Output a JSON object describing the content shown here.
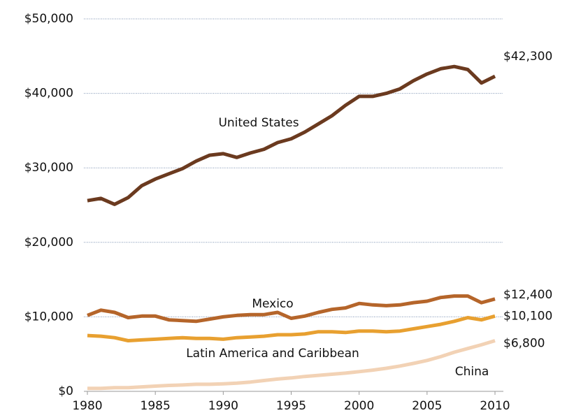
{
  "chart_data": {
    "type": "line",
    "x": [
      1980,
      1981,
      1982,
      1983,
      1984,
      1985,
      1986,
      1987,
      1988,
      1989,
      1990,
      1991,
      1992,
      1993,
      1994,
      1995,
      1996,
      1997,
      1998,
      1999,
      2000,
      2001,
      2002,
      2003,
      2004,
      2005,
      2006,
      2007,
      2008,
      2009,
      2010
    ],
    "xlim": [
      1980,
      2010
    ],
    "xticks": [
      1980,
      1985,
      1990,
      1995,
      2000,
      2005,
      2010
    ],
    "ylim": [
      0,
      50000
    ],
    "yticks": [
      {
        "value": 0,
        "label": "$0"
      },
      {
        "value": 10000,
        "label": "$10,000"
      },
      {
        "value": 20000,
        "label": "$20,000"
      },
      {
        "value": 30000,
        "label": "$30,000"
      },
      {
        "value": 40000,
        "label": "$40,000"
      },
      {
        "value": 50000,
        "label": "$50,000"
      }
    ],
    "grid": true,
    "series": [
      {
        "name": "United States",
        "color": "#6b3a1f",
        "values": [
          25600,
          25900,
          25100,
          26000,
          27600,
          28500,
          29200,
          29900,
          30900,
          31700,
          31900,
          31400,
          32000,
          32500,
          33400,
          33900,
          34800,
          35900,
          37000,
          38400,
          39600,
          39600,
          40000,
          40600,
          41700,
          42600,
          43300,
          43600,
          43200,
          41400,
          42300
        ],
        "value_labels": [
          null,
          null,
          null,
          null,
          null,
          null,
          null,
          null,
          null,
          null,
          null,
          null,
          null,
          null,
          null,
          null,
          null,
          null,
          null,
          null,
          null,
          null,
          null,
          null,
          null,
          null,
          null,
          null,
          null,
          null,
          "$42,300"
        ]
      },
      {
        "name": "Mexico",
        "color": "#b5652a",
        "values": [
          10200,
          10900,
          10600,
          9900,
          10100,
          10100,
          9600,
          9500,
          9400,
          9700,
          10000,
          10200,
          10300,
          10300,
          10600,
          9800,
          10100,
          10600,
          11000,
          11200,
          11800,
          11600,
          11500,
          11600,
          11900,
          12100,
          12600,
          12800,
          12800,
          11900,
          12400
        ],
        "value_labels": [
          null,
          null,
          null,
          null,
          null,
          null,
          null,
          null,
          null,
          null,
          null,
          null,
          null,
          null,
          null,
          null,
          null,
          null,
          null,
          null,
          null,
          null,
          null,
          null,
          null,
          null,
          null,
          null,
          null,
          null,
          "$12,400"
        ]
      },
      {
        "name": "Latin America and Caribbean",
        "color": "#e8a030",
        "values": [
          7500,
          7400,
          7200,
          6800,
          6900,
          7000,
          7100,
          7200,
          7100,
          7100,
          7000,
          7200,
          7300,
          7400,
          7600,
          7600,
          7700,
          8000,
          8000,
          7900,
          8100,
          8100,
          8000,
          8100,
          8400,
          8700,
          9000,
          9400,
          9900,
          9600,
          10100
        ],
        "value_labels": [
          null,
          null,
          null,
          null,
          null,
          null,
          null,
          null,
          null,
          null,
          null,
          null,
          null,
          null,
          null,
          null,
          null,
          null,
          null,
          null,
          null,
          null,
          null,
          null,
          null,
          null,
          null,
          null,
          null,
          null,
          "$10,100"
        ]
      },
      {
        "name": "China",
        "color": "#f2d2b5",
        "values": [
          400,
          400,
          500,
          500,
          600,
          700,
          800,
          850,
          950,
          950,
          1000,
          1100,
          1250,
          1450,
          1650,
          1800,
          2000,
          2150,
          2300,
          2450,
          2650,
          2850,
          3100,
          3400,
          3750,
          4150,
          4650,
          5250,
          5750,
          6250,
          6800
        ],
        "value_labels": [
          null,
          null,
          null,
          null,
          null,
          null,
          null,
          null,
          null,
          null,
          null,
          null,
          null,
          null,
          null,
          null,
          null,
          null,
          null,
          null,
          null,
          null,
          null,
          null,
          null,
          null,
          null,
          null,
          null,
          null,
          "$6,800"
        ]
      }
    ]
  }
}
